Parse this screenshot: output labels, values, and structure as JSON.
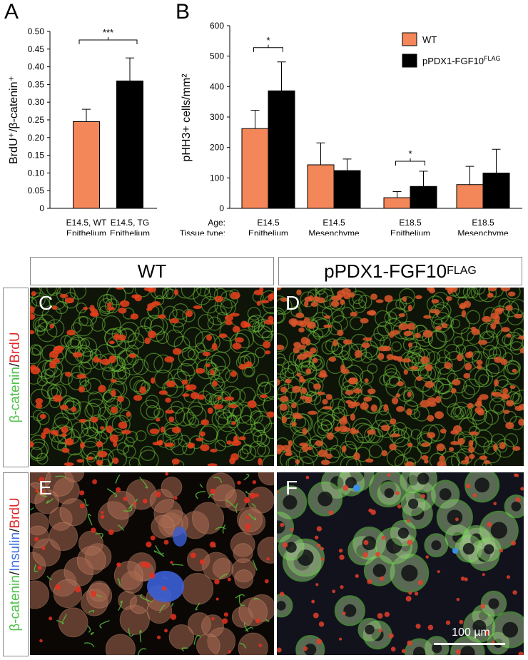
{
  "panel_labels": {
    "A": "A",
    "B": "B",
    "C": "C",
    "D": "D",
    "E": "E",
    "F": "F"
  },
  "colors": {
    "wt": "#f4875a",
    "tg": "#000000"
  },
  "chart_data": [
    {
      "type": "bar",
      "panel": "A",
      "ylabel": "BrdU⁺/β-catenin⁺",
      "ylim": [
        0,
        0.5
      ],
      "yticks": [
        "0",
        "0.05",
        "0.10",
        "0.15",
        "0.20",
        "0.25",
        "0.30",
        "0.35",
        "0.40",
        "0.45",
        "0.50"
      ],
      "categories": [
        [
          "E14.5, WT",
          "Epithelium"
        ],
        [
          "E14.5, TG",
          "Epithelium"
        ]
      ],
      "values": [
        0.245,
        0.36
      ],
      "errors": [
        0.035,
        0.065
      ],
      "bar_colors": [
        "#f4875a",
        "#000000"
      ],
      "significance": [
        {
          "between": [
            0,
            1
          ],
          "label": "***"
        }
      ]
    },
    {
      "type": "bar",
      "panel": "B",
      "ylabel": "pHH3+ cells/mm²",
      "ylim": [
        0,
        600
      ],
      "yticks": [
        "0",
        "100",
        "200",
        "300",
        "400",
        "500",
        "600"
      ],
      "row_labels": [
        "Age:",
        "Tissue type:"
      ],
      "categories": [
        [
          "E14.5",
          "Epithelium"
        ],
        [
          "E14.5",
          "Mesenchyme"
        ],
        [
          "E18.5",
          "Epithelium"
        ],
        [
          "E18.5",
          "Mesenchyme"
        ]
      ],
      "series": [
        {
          "name": "WT",
          "values": [
            262,
            143,
            35,
            78
          ],
          "errors": [
            60,
            72,
            20,
            60
          ],
          "color": "#f4875a"
        },
        {
          "name": "pPDX1-FGF10",
          "name_sup": "FLAG",
          "values": [
            386,
            124,
            72,
            116
          ],
          "errors": [
            95,
            38,
            50,
            78
          ],
          "color": "#000000"
        }
      ],
      "significance": [
        {
          "group": 0,
          "label": "*"
        },
        {
          "group": 2,
          "label": "*"
        }
      ],
      "legend": "top-right"
    }
  ],
  "micrographs": {
    "col_headers": {
      "wt": "WT",
      "tg_main": "pPDX1-FGF10",
      "tg_sup": "FLAG"
    },
    "row1_label": [
      {
        "text": "β-catenin",
        "color": "#4ec24a"
      },
      {
        "text": "/",
        "color": "#222222"
      },
      {
        "text": "BrdU",
        "color": "#e02828"
      }
    ],
    "row2_label": [
      {
        "text": "β-catenin",
        "color": "#4ec24a"
      },
      {
        "text": "/",
        "color": "#222222"
      },
      {
        "text": "Insulin",
        "color": "#3a6fe0"
      },
      {
        "text": "/",
        "color": "#222222"
      },
      {
        "text": "BrdU",
        "color": "#e02828"
      }
    ],
    "scale_bar": "100 µm"
  }
}
